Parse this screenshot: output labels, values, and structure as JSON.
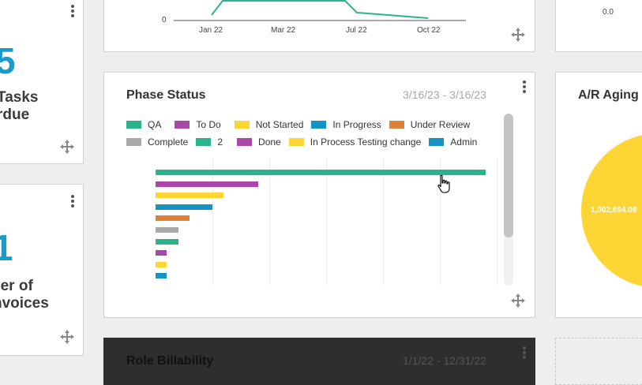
{
  "kpi_tasks": {
    "value": "5",
    "label_line1": "Tasks",
    "label_line2": "rdue"
  },
  "kpi_invoices": {
    "value": "1",
    "label_line1": "ber of",
    "label_line2": "nvoices"
  },
  "line_card": {
    "y_tick": "0",
    "x_ticks": [
      "Jan 22",
      "Mar 22",
      "Jul 22",
      "Oct 22"
    ]
  },
  "right_top_card": {
    "tick": "0.0"
  },
  "phase_status": {
    "title": "Phase Status",
    "date_range": "3/16/23 - 3/16/23",
    "legend": [
      {
        "label": "QA",
        "color": "#2bb38b"
      },
      {
        "label": "To Do",
        "color": "#ab47a8"
      },
      {
        "label": "Not Started",
        "color": "#fdd635"
      },
      {
        "label": "In Progress",
        "color": "#1594c3"
      },
      {
        "label": "Under Review",
        "color": "#e0813a"
      },
      {
        "label": "Complete",
        "color": "#a9a9a9"
      },
      {
        "label": "2",
        "color": "#2bb38b"
      },
      {
        "label": "Done",
        "color": "#ab47a8"
      },
      {
        "label": "In Process Testing change",
        "color": "#fdd635"
      },
      {
        "label": "Admin",
        "color": "#1594c3"
      }
    ]
  },
  "chart_data": {
    "type": "bar",
    "orientation": "horizontal",
    "categories": [
      "QA",
      "To Do",
      "Not Started",
      "In Progress",
      "Under Review",
      "Complete",
      "2",
      "Done",
      "In Process Testing change",
      "Admin"
    ],
    "values": [
      58,
      18,
      12,
      10,
      6,
      4,
      4,
      2,
      2,
      2
    ],
    "xlim": [
      0,
      60
    ],
    "grid": true,
    "legend_position": "top"
  },
  "ar_aging": {
    "title": "A/R Aging",
    "pie_label": "1,002,694.08",
    "pie_color": "#fdd635"
  },
  "role_billability": {
    "title": "Role Billability",
    "date_range": "1/1/22 - 12/31/22"
  }
}
